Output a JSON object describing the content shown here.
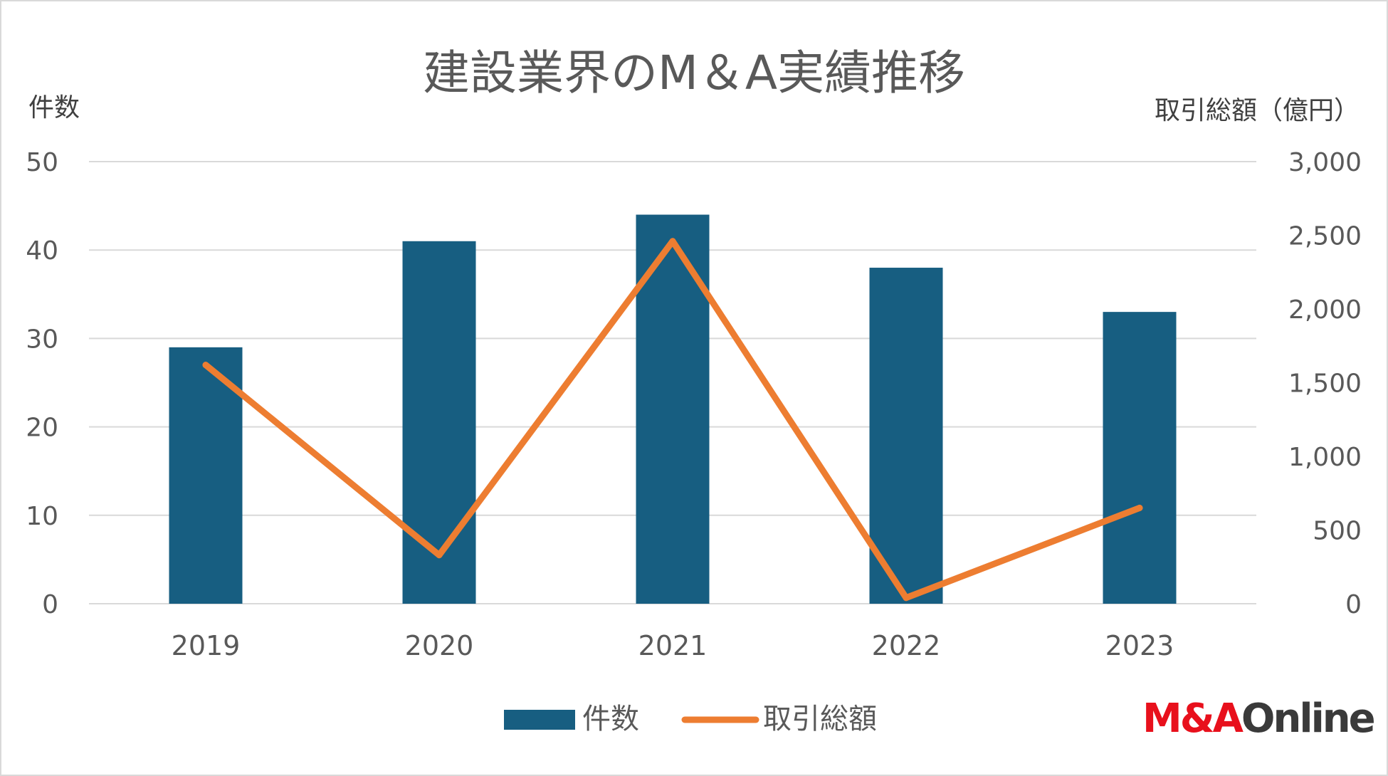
{
  "chart_data": {
    "type": "bar+line",
    "title": "建設業界のM＆A実績推移",
    "y_left_label": "件数",
    "y_right_label": "取引総額（億円）",
    "categories": [
      "2019",
      "2020",
      "2021",
      "2022",
      "2023"
    ],
    "series": [
      {
        "name": "件数",
        "type": "bar",
        "axis": "left",
        "color": "#175e81",
        "values": [
          29,
          41,
          44,
          38,
          33
        ]
      },
      {
        "name": "取引総額",
        "type": "line",
        "axis": "right",
        "color": "#ed7d31",
        "values": [
          1620,
          330,
          2460,
          40,
          650
        ]
      }
    ],
    "y_left": {
      "min": 0,
      "max": 50,
      "ticks": [
        "0",
        "10",
        "20",
        "30",
        "40",
        "50"
      ]
    },
    "y_right": {
      "min": 0,
      "max": 3000,
      "ticks": [
        "0",
        "500",
        "1,000",
        "1,500",
        "2,000",
        "2,500",
        "3,000"
      ]
    },
    "grid": true,
    "legend_position": "bottom"
  },
  "logo": {
    "part1": "M&A",
    "part2": "Online"
  },
  "colors": {
    "bar": "#175e81",
    "line": "#ed7d31",
    "grid": "#d9d9d9",
    "text": "#595959",
    "logo_red": "#e8101c"
  }
}
